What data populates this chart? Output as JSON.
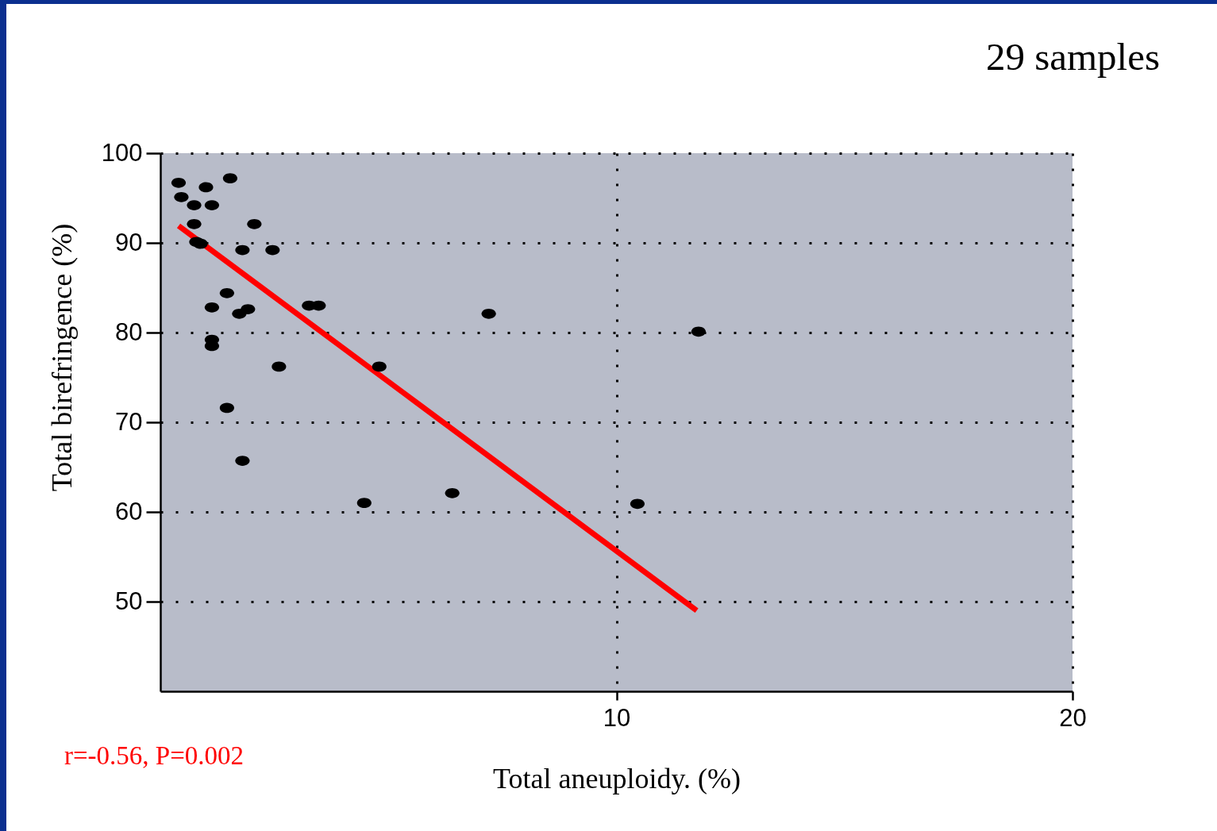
{
  "chart_data": {
    "type": "scatter",
    "title": "29 samples",
    "xlabel": "Total aneuploidy. (%)",
    "ylabel": "Total birefringence (%)",
    "annotations": [
      "r=-0.56, P=0.002"
    ],
    "xlim": [
      0,
      20
    ],
    "ylim": [
      40,
      100
    ],
    "xticks": [
      10,
      20
    ],
    "yticks": [
      50,
      60,
      70,
      80,
      90,
      100
    ],
    "grid": true,
    "series": [
      {
        "color": "#000000",
        "marker": "circle",
        "x": [
          0.4,
          0.46,
          0.74,
          1.0,
          1.13,
          1.53,
          0.74,
          0.79,
          0.88,
          2.06,
          1.8,
          2.46,
          1.46,
          1.13,
          1.73,
          1.92,
          3.26,
          3.47,
          7.2,
          11.8,
          1.13,
          1.13,
          2.6,
          4.8,
          1.46,
          1.8,
          4.47,
          6.4,
          10.46
        ],
        "values": [
          96.7,
          95.1,
          94.2,
          96.2,
          94.2,
          97.2,
          92.1,
          90.1,
          89.9,
          92.1,
          89.2,
          89.2,
          84.4,
          82.8,
          82.1,
          82.6,
          83.0,
          83.0,
          82.1,
          80.1,
          79.2,
          78.5,
          76.2,
          76.2,
          71.6,
          65.7,
          61.0,
          62.1,
          60.9
        ]
      },
      {
        "type": "line",
        "color": "#ff0000",
        "line_style": "solid",
        "x": [
          0.4,
          11.76
        ],
        "values": [
          91.9,
          49.0
        ]
      }
    ]
  }
}
